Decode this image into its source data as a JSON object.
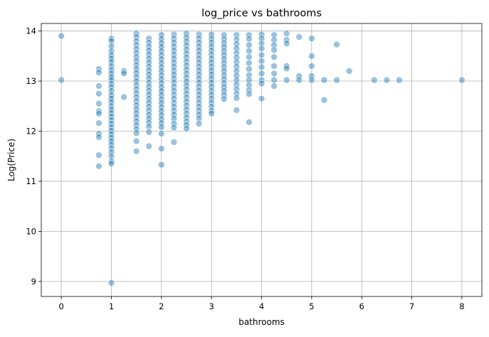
{
  "chart_data": {
    "type": "scatter",
    "title": "log_price vs bathrooms",
    "xlabel": "bathrooms",
    "ylabel": "Log(Price)",
    "xlim": [
      -0.4,
      8.4
    ],
    "ylim": [
      8.7,
      14.15
    ],
    "x_ticks": [
      0,
      1,
      2,
      3,
      4,
      5,
      6,
      7,
      8
    ],
    "y_ticks": [
      9,
      10,
      11,
      12,
      13,
      14
    ],
    "grid": true,
    "marker_color": "#1f77b4",
    "marker_edge_color": "#ffffff",
    "marker_alpha": 0.45,
    "points": [
      [
        0,
        13.9
      ],
      [
        0,
        13.02
      ],
      [
        0.75,
        13.24
      ],
      [
        0.75,
        13.17
      ],
      [
        0.75,
        12.9
      ],
      [
        0.75,
        12.75
      ],
      [
        0.75,
        12.55
      ],
      [
        0.75,
        12.4
      ],
      [
        0.75,
        12.35
      ],
      [
        0.75,
        12.16
      ],
      [
        0.75,
        11.95
      ],
      [
        0.75,
        11.88
      ],
      [
        0.75,
        11.52
      ],
      [
        0.75,
        11.3
      ],
      [
        1,
        13.85
      ],
      [
        1,
        13.8
      ],
      [
        1,
        13.7
      ],
      [
        1,
        13.6
      ],
      [
        1,
        13.52
      ],
      [
        1,
        13.45
      ],
      [
        1,
        13.38
      ],
      [
        1,
        13.3
      ],
      [
        1,
        13.22
      ],
      [
        1,
        13.15
      ],
      [
        1,
        13.08
      ],
      [
        1,
        13.02
      ],
      [
        1,
        12.95
      ],
      [
        1,
        12.88
      ],
      [
        1,
        12.8
      ],
      [
        1,
        12.72
      ],
      [
        1,
        12.65
      ],
      [
        1,
        12.58
      ],
      [
        1,
        12.5
      ],
      [
        1,
        12.43
      ],
      [
        1,
        12.36
      ],
      [
        1,
        12.29
      ],
      [
        1,
        12.22
      ],
      [
        1,
        12.15
      ],
      [
        1,
        12.08
      ],
      [
        1,
        12.01
      ],
      [
        1,
        11.94
      ],
      [
        1,
        11.87
      ],
      [
        1,
        11.8
      ],
      [
        1,
        11.73
      ],
      [
        1,
        11.66
      ],
      [
        1,
        11.58
      ],
      [
        1,
        11.5
      ],
      [
        1,
        11.4
      ],
      [
        1,
        11.35
      ],
      [
        1,
        8.97
      ],
      [
        1.25,
        13.2
      ],
      [
        1.25,
        13.15
      ],
      [
        1.25,
        12.68
      ],
      [
        1.5,
        13.95
      ],
      [
        1.5,
        13.88
      ],
      [
        1.5,
        13.8
      ],
      [
        1.5,
        13.72
      ],
      [
        1.5,
        13.64
      ],
      [
        1.5,
        13.56
      ],
      [
        1.5,
        13.48
      ],
      [
        1.5,
        13.4
      ],
      [
        1.5,
        13.32
      ],
      [
        1.5,
        13.24
      ],
      [
        1.5,
        13.16
      ],
      [
        1.5,
        13.08
      ],
      [
        1.5,
        13.0
      ],
      [
        1.5,
        12.92
      ],
      [
        1.5,
        12.84
      ],
      [
        1.5,
        12.76
      ],
      [
        1.5,
        12.68
      ],
      [
        1.5,
        12.6
      ],
      [
        1.5,
        12.52
      ],
      [
        1.5,
        12.44
      ],
      [
        1.5,
        12.36
      ],
      [
        1.5,
        12.28
      ],
      [
        1.5,
        12.2
      ],
      [
        1.5,
        12.12
      ],
      [
        1.5,
        12.04
      ],
      [
        1.5,
        11.96
      ],
      [
        1.5,
        11.8
      ],
      [
        1.5,
        11.6
      ],
      [
        1.75,
        13.85
      ],
      [
        1.75,
        13.77
      ],
      [
        1.75,
        13.69
      ],
      [
        1.75,
        13.61
      ],
      [
        1.75,
        13.53
      ],
      [
        1.75,
        13.45
      ],
      [
        1.75,
        13.37
      ],
      [
        1.75,
        13.29
      ],
      [
        1.75,
        13.21
      ],
      [
        1.75,
        13.13
      ],
      [
        1.75,
        13.05
      ],
      [
        1.75,
        12.97
      ],
      [
        1.75,
        12.89
      ],
      [
        1.75,
        12.81
      ],
      [
        1.75,
        12.73
      ],
      [
        1.75,
        12.65
      ],
      [
        1.75,
        12.57
      ],
      [
        1.75,
        12.49
      ],
      [
        1.75,
        12.41
      ],
      [
        1.75,
        12.33
      ],
      [
        1.75,
        12.25
      ],
      [
        1.75,
        12.17
      ],
      [
        1.75,
        12.09
      ],
      [
        1.75,
        11.98
      ],
      [
        1.75,
        11.7
      ],
      [
        2,
        13.92
      ],
      [
        2,
        13.84
      ],
      [
        2,
        13.76
      ],
      [
        2,
        13.68
      ],
      [
        2,
        13.6
      ],
      [
        2,
        13.52
      ],
      [
        2,
        13.44
      ],
      [
        2,
        13.36
      ],
      [
        2,
        13.28
      ],
      [
        2,
        13.2
      ],
      [
        2,
        13.12
      ],
      [
        2,
        13.04
      ],
      [
        2,
        12.96
      ],
      [
        2,
        12.88
      ],
      [
        2,
        12.8
      ],
      [
        2,
        12.72
      ],
      [
        2,
        12.64
      ],
      [
        2,
        12.56
      ],
      [
        2,
        12.48
      ],
      [
        2,
        12.4
      ],
      [
        2,
        12.32
      ],
      [
        2,
        12.24
      ],
      [
        2,
        12.16
      ],
      [
        2,
        12.08
      ],
      [
        2,
        11.95
      ],
      [
        2,
        11.65
      ],
      [
        2,
        11.33
      ],
      [
        2.25,
        13.93
      ],
      [
        2.25,
        13.85
      ],
      [
        2.25,
        13.77
      ],
      [
        2.25,
        13.69
      ],
      [
        2.25,
        13.61
      ],
      [
        2.25,
        13.53
      ],
      [
        2.25,
        13.45
      ],
      [
        2.25,
        13.37
      ],
      [
        2.25,
        13.29
      ],
      [
        2.25,
        13.21
      ],
      [
        2.25,
        13.13
      ],
      [
        2.25,
        13.05
      ],
      [
        2.25,
        12.97
      ],
      [
        2.25,
        12.89
      ],
      [
        2.25,
        12.81
      ],
      [
        2.25,
        12.73
      ],
      [
        2.25,
        12.65
      ],
      [
        2.25,
        12.57
      ],
      [
        2.25,
        12.49
      ],
      [
        2.25,
        12.41
      ],
      [
        2.25,
        12.33
      ],
      [
        2.25,
        12.25
      ],
      [
        2.25,
        12.15
      ],
      [
        2.25,
        12.07
      ],
      [
        2.25,
        11.78
      ],
      [
        2.5,
        13.95
      ],
      [
        2.5,
        13.87
      ],
      [
        2.5,
        13.79
      ],
      [
        2.5,
        13.71
      ],
      [
        2.5,
        13.63
      ],
      [
        2.5,
        13.55
      ],
      [
        2.5,
        13.47
      ],
      [
        2.5,
        13.39
      ],
      [
        2.5,
        13.31
      ],
      [
        2.5,
        13.23
      ],
      [
        2.5,
        13.15
      ],
      [
        2.5,
        13.07
      ],
      [
        2.5,
        12.99
      ],
      [
        2.5,
        12.91
      ],
      [
        2.5,
        12.83
      ],
      [
        2.5,
        12.75
      ],
      [
        2.5,
        12.67
      ],
      [
        2.5,
        12.59
      ],
      [
        2.5,
        12.51
      ],
      [
        2.5,
        12.43
      ],
      [
        2.5,
        12.35
      ],
      [
        2.5,
        12.27
      ],
      [
        2.5,
        12.19
      ],
      [
        2.5,
        12.12
      ],
      [
        2.5,
        12.05
      ],
      [
        2.75,
        13.93
      ],
      [
        2.75,
        13.85
      ],
      [
        2.75,
        13.77
      ],
      [
        2.75,
        13.69
      ],
      [
        2.75,
        13.61
      ],
      [
        2.75,
        13.53
      ],
      [
        2.75,
        13.45
      ],
      [
        2.75,
        13.37
      ],
      [
        2.75,
        13.29
      ],
      [
        2.75,
        13.21
      ],
      [
        2.75,
        13.13
      ],
      [
        2.75,
        13.05
      ],
      [
        2.75,
        12.97
      ],
      [
        2.75,
        12.89
      ],
      [
        2.75,
        12.81
      ],
      [
        2.75,
        12.73
      ],
      [
        2.75,
        12.65
      ],
      [
        2.75,
        12.57
      ],
      [
        2.75,
        12.49
      ],
      [
        2.75,
        12.41
      ],
      [
        2.75,
        12.33
      ],
      [
        2.75,
        12.25
      ],
      [
        2.75,
        12.15
      ],
      [
        3,
        13.93
      ],
      [
        3,
        13.85
      ],
      [
        3,
        13.77
      ],
      [
        3,
        13.69
      ],
      [
        3,
        13.61
      ],
      [
        3,
        13.53
      ],
      [
        3,
        13.45
      ],
      [
        3,
        13.37
      ],
      [
        3,
        13.29
      ],
      [
        3,
        13.21
      ],
      [
        3,
        13.13
      ],
      [
        3,
        13.05
      ],
      [
        3,
        12.97
      ],
      [
        3,
        12.89
      ],
      [
        3,
        12.81
      ],
      [
        3,
        12.73
      ],
      [
        3,
        12.65
      ],
      [
        3,
        12.57
      ],
      [
        3,
        12.49
      ],
      [
        3,
        12.41
      ],
      [
        3,
        12.35
      ],
      [
        3.25,
        13.92
      ],
      [
        3.25,
        13.84
      ],
      [
        3.25,
        13.76
      ],
      [
        3.25,
        13.68
      ],
      [
        3.25,
        13.6
      ],
      [
        3.25,
        13.52
      ],
      [
        3.25,
        13.44
      ],
      [
        3.25,
        13.36
      ],
      [
        3.25,
        13.28
      ],
      [
        3.25,
        13.2
      ],
      [
        3.25,
        13.12
      ],
      [
        3.25,
        13.04
      ],
      [
        3.25,
        12.96
      ],
      [
        3.25,
        12.88
      ],
      [
        3.25,
        12.8
      ],
      [
        3.25,
        12.72
      ],
      [
        3.25,
        12.64
      ],
      [
        3.5,
        13.92
      ],
      [
        3.5,
        13.83
      ],
      [
        3.5,
        13.74
      ],
      [
        3.5,
        13.65
      ],
      [
        3.5,
        13.56
      ],
      [
        3.5,
        13.47
      ],
      [
        3.5,
        13.38
      ],
      [
        3.5,
        13.29
      ],
      [
        3.5,
        13.2
      ],
      [
        3.5,
        13.11
      ],
      [
        3.5,
        13.02
      ],
      [
        3.5,
        12.93
      ],
      [
        3.5,
        12.84
      ],
      [
        3.5,
        12.75
      ],
      [
        3.5,
        12.66
      ],
      [
        3.5,
        12.42
      ],
      [
        3.75,
        13.92
      ],
      [
        3.75,
        13.84
      ],
      [
        3.75,
        13.72
      ],
      [
        3.75,
        13.6
      ],
      [
        3.75,
        13.48
      ],
      [
        3.75,
        13.36
      ],
      [
        3.75,
        13.24
      ],
      [
        3.75,
        13.12
      ],
      [
        3.75,
        13.02
      ],
      [
        3.75,
        12.92
      ],
      [
        3.75,
        12.82
      ],
      [
        3.75,
        12.74
      ],
      [
        3.75,
        12.18
      ],
      [
        4,
        13.93
      ],
      [
        4,
        13.85
      ],
      [
        4,
        13.75
      ],
      [
        4,
        13.65
      ],
      [
        4,
        13.52
      ],
      [
        4,
        13.4
      ],
      [
        4,
        13.28
      ],
      [
        4,
        13.15
      ],
      [
        4,
        13.02
      ],
      [
        4,
        12.95
      ],
      [
        4,
        12.65
      ],
      [
        4.25,
        13.92
      ],
      [
        4.25,
        13.82
      ],
      [
        4.25,
        13.72
      ],
      [
        4.25,
        13.62
      ],
      [
        4.25,
        13.48
      ],
      [
        4.25,
        13.3
      ],
      [
        4.25,
        13.15
      ],
      [
        4.25,
        13.02
      ],
      [
        4.25,
        12.9
      ],
      [
        4.5,
        13.95
      ],
      [
        4.5,
        13.82
      ],
      [
        4.5,
        13.75
      ],
      [
        4.5,
        13.3
      ],
      [
        4.5,
        13.25
      ],
      [
        4.5,
        13.02
      ],
      [
        4.75,
        13.88
      ],
      [
        4.75,
        13.1
      ],
      [
        4.75,
        13.02
      ],
      [
        5,
        13.85
      ],
      [
        5,
        13.5
      ],
      [
        5,
        13.3
      ],
      [
        5,
        13.1
      ],
      [
        5,
        13.02
      ],
      [
        5.25,
        13.02
      ],
      [
        5.25,
        12.62
      ],
      [
        5.5,
        13.73
      ],
      [
        5.5,
        13.02
      ],
      [
        5.75,
        13.2
      ],
      [
        6.25,
        13.02
      ],
      [
        6.5,
        13.02
      ],
      [
        6.75,
        13.02
      ],
      [
        8,
        13.02
      ]
    ]
  }
}
